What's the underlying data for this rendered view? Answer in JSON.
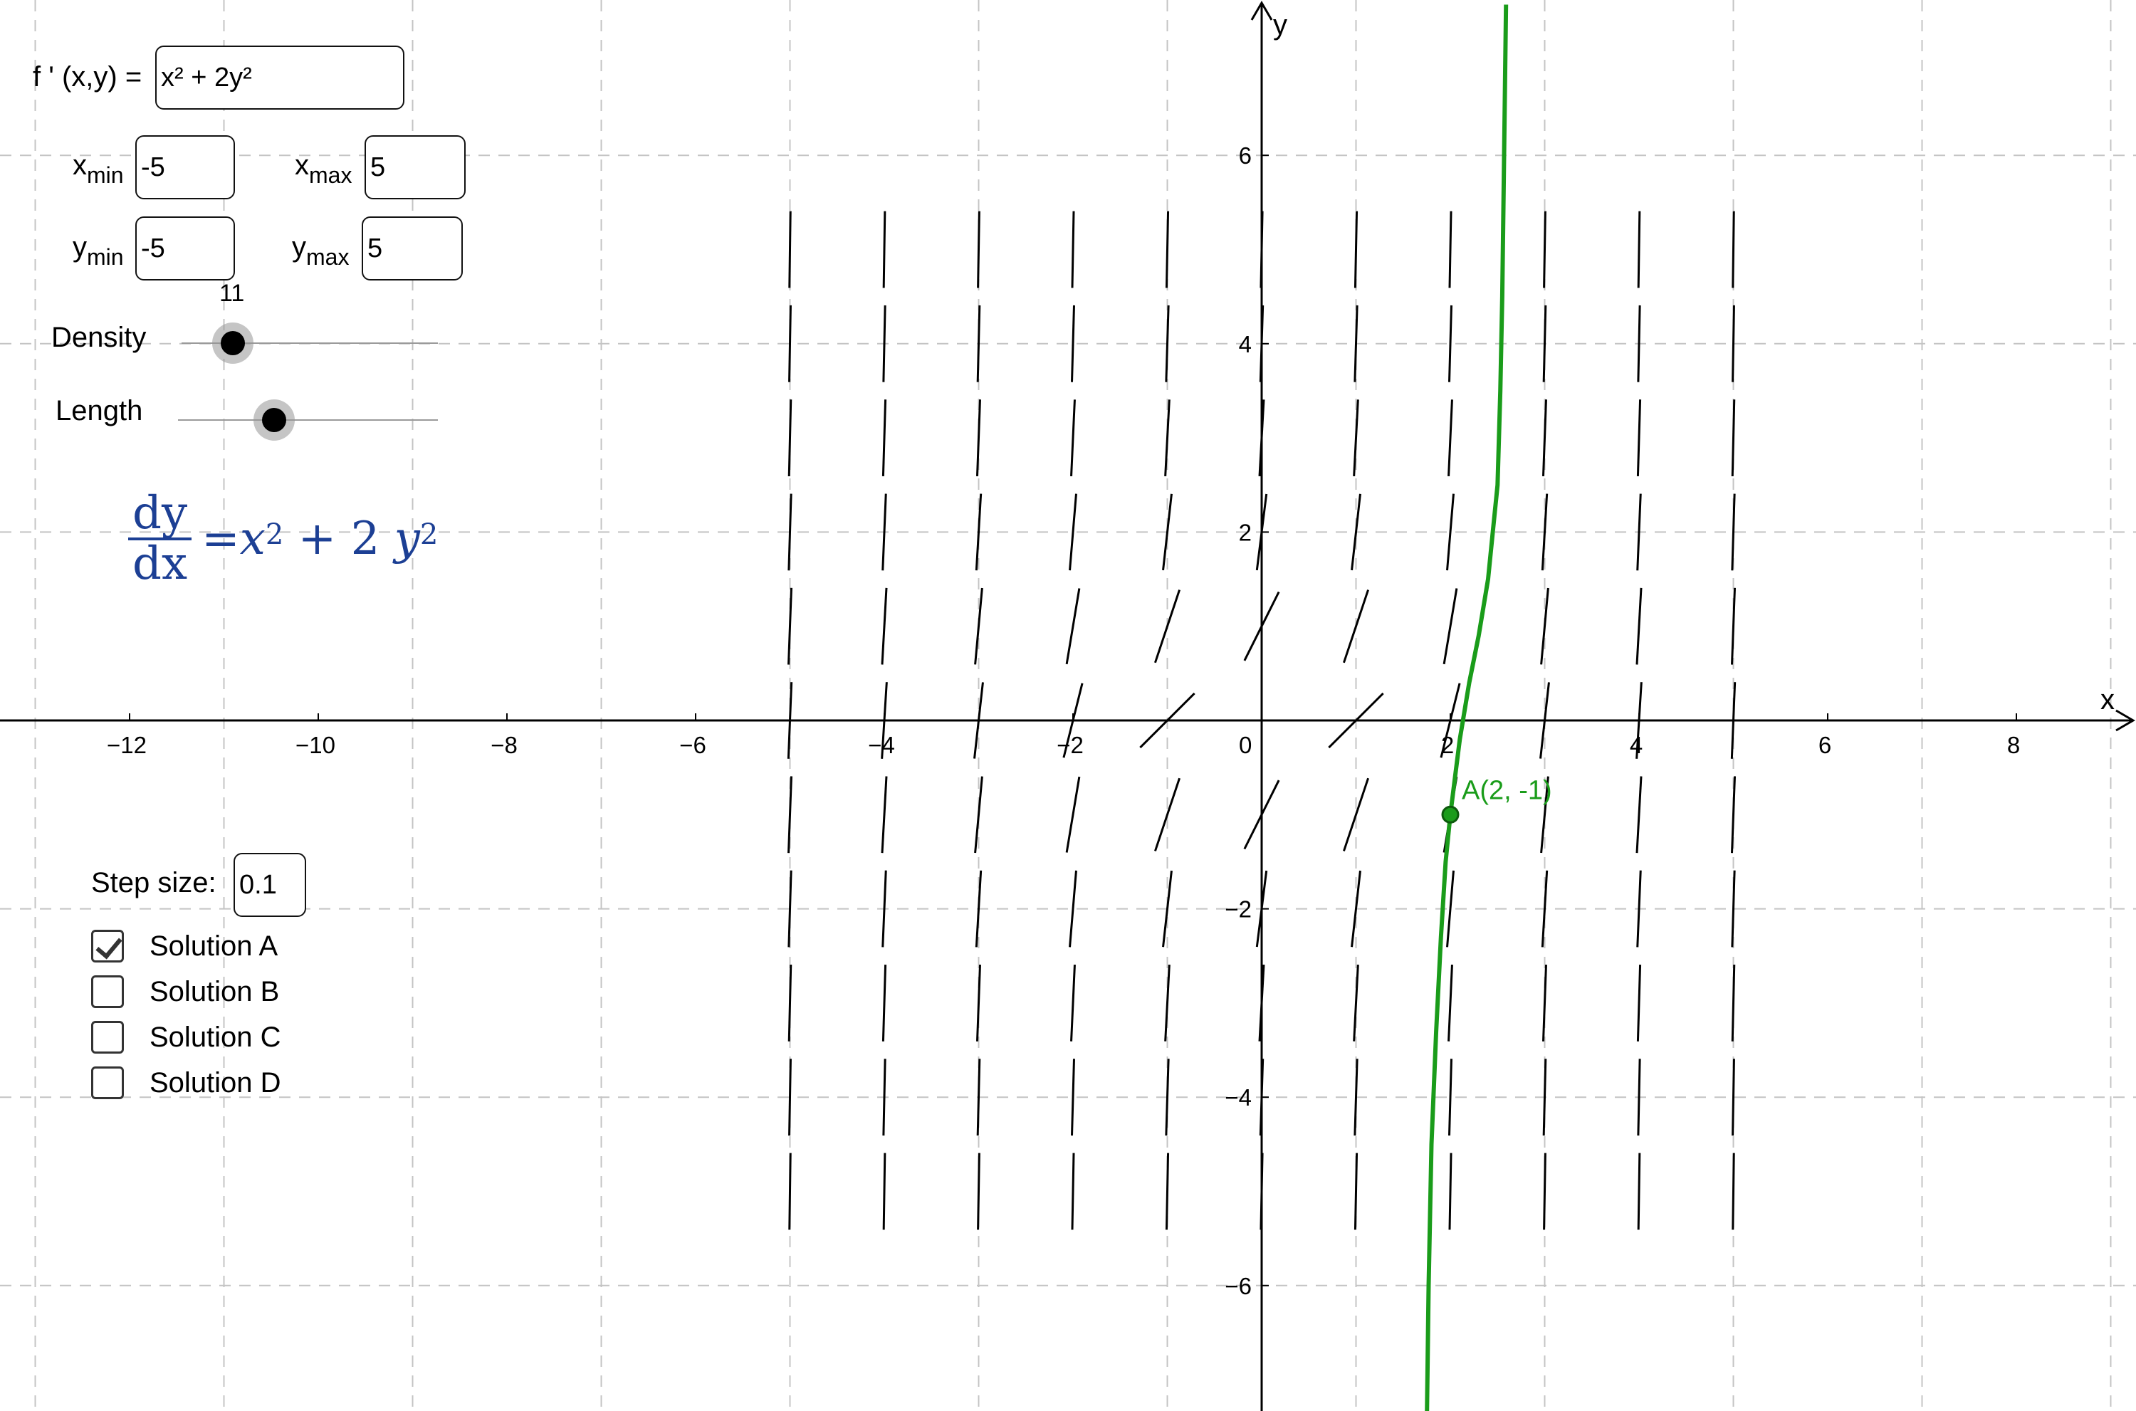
{
  "function_label": "f ' (x,y) =",
  "function_value": "x² + 2y²",
  "range": {
    "xmin": {
      "var": "x",
      "sub": "min",
      "value": "-5"
    },
    "xmax": {
      "var": "x",
      "sub": "max",
      "value": "5"
    },
    "ymin": {
      "var": "y",
      "sub": "min",
      "value": "-5"
    },
    "ymax": {
      "var": "y",
      "sub": "max",
      "value": "5"
    }
  },
  "density": {
    "label": "Density",
    "value": "11",
    "fraction": 0.2
  },
  "length": {
    "label": "Length",
    "fraction": 0.37
  },
  "equation": {
    "numerator": "dy",
    "denominator": "dx",
    "rhs": [
      "= ",
      "x",
      "2",
      " + 2 ",
      "y",
      "2"
    ]
  },
  "step": {
    "label": "Step size:",
    "value": "0.1"
  },
  "solutions": [
    {
      "label": "Solution A",
      "checked": true
    },
    {
      "label": "Solution B",
      "checked": false
    },
    {
      "label": "Solution C",
      "checked": false
    },
    {
      "label": "Solution D",
      "checked": false
    }
  ],
  "colors": {
    "solution": "#1a9c1a",
    "equation": "#1c3f94",
    "grid": "#c4c4c4"
  },
  "chart_data": {
    "type": "line",
    "xlabel": "x",
    "ylabel": "y",
    "xlim": [
      -13.4,
      9.2
    ],
    "ylim": [
      -7.5,
      7.6
    ],
    "x_ticks": [
      "−12",
      "−10",
      "−8",
      "−6",
      "−4",
      "−2",
      "0",
      "2",
      "4",
      "6",
      "8"
    ],
    "y_ticks": [
      "6",
      "4",
      "2",
      "−2",
      "−4",
      "−6"
    ],
    "x_tick_values": [
      -12,
      -10,
      -8,
      -6,
      -4,
      -2,
      0,
      2,
      4,
      6,
      8
    ],
    "y_tick_values": [
      6,
      4,
      2,
      -2,
      -4,
      -6
    ],
    "grid": true,
    "slope_field": {
      "function": "x^2 + 2 y^2",
      "x_range": [
        -5,
        5
      ],
      "y_range": [
        -5,
        5
      ],
      "density": 11
    },
    "point": {
      "name": "A",
      "x": 2,
      "y": -1,
      "label": "A(2, -1)"
    },
    "series": [
      {
        "x": [
          1.75,
          1.77,
          1.8,
          1.85,
          1.9,
          1.95,
          2.0,
          2.05,
          2.1,
          2.15,
          2.2,
          2.3,
          2.4,
          2.45,
          2.5,
          2.53,
          2.55,
          2.57,
          2.59
        ],
        "y": [
          -7.5,
          -6.0,
          -4.5,
          -3.3,
          -2.3,
          -1.5,
          -1.0,
          -0.6,
          -0.2,
          0.1,
          0.4,
          0.9,
          1.5,
          2.0,
          2.5,
          3.5,
          4.5,
          6.0,
          7.6
        ]
      }
    ]
  }
}
